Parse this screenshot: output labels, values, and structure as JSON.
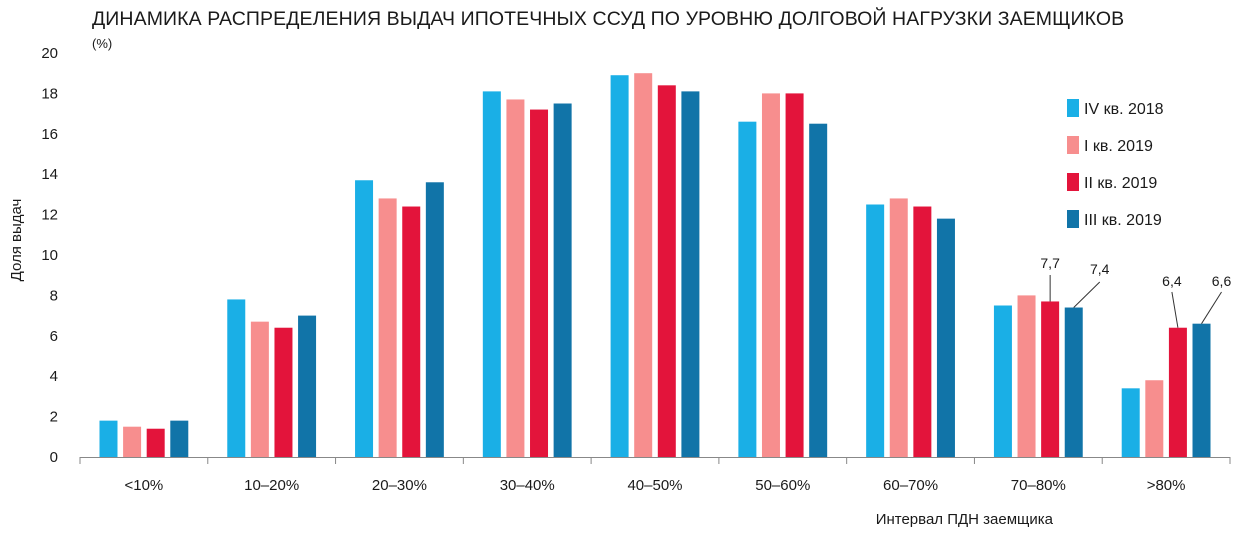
{
  "chart_data": {
    "type": "bar",
    "title": "ДИНАМИКА РАСПРЕДЕЛЕНИЯ ВЫДАЧ ИПОТЕЧНЫХ ССУД ПО УРОВНЮ ДОЛГОВОЙ НАГРУЗКИ ЗАЕМЩИКОВ",
    "subtitle": "(%)",
    "xlabel": "Интервал ПДН заемщика",
    "ylabel": "Доля выдач",
    "ylim": [
      0,
      20
    ],
    "yticks": [
      "0",
      "2",
      "4",
      "6",
      "8",
      "10",
      "12",
      "14",
      "16",
      "18",
      "20"
    ],
    "grid": false,
    "legend_position": "right",
    "categories": [
      "<10%",
      "10–20%",
      "20–30%",
      "30–40%",
      "40–50%",
      "50–60%",
      "60–70%",
      "70–80%",
      ">80%"
    ],
    "series": [
      {
        "name": "IV кв. 2018",
        "color": "#1aafe6",
        "values": [
          1.8,
          7.8,
          13.7,
          18.1,
          18.9,
          16.6,
          12.5,
          7.5,
          3.4
        ]
      },
      {
        "name": "I кв. 2019",
        "color": "#f78e8e",
        "values": [
          1.5,
          6.7,
          12.8,
          17.7,
          19.0,
          18.0,
          12.8,
          8.0,
          3.8
        ]
      },
      {
        "name": "II кв. 2019",
        "color": "#e3143b",
        "values": [
          1.4,
          6.4,
          12.4,
          17.2,
          18.4,
          18.0,
          12.4,
          7.7,
          6.4
        ]
      },
      {
        "name": "III кв. 2019",
        "color": "#1174a8",
        "values": [
          1.8,
          7.0,
          13.6,
          17.5,
          18.1,
          16.5,
          11.8,
          7.4,
          6.6
        ]
      }
    ],
    "data_labels": [
      {
        "category": "70–80%",
        "series": "II кв. 2019",
        "text": "7,7"
      },
      {
        "category": "70–80%",
        "series": "III кв. 2019",
        "text": "7,4"
      },
      {
        "category": ">80%",
        "series": "II кв. 2019",
        "text": "6,4"
      },
      {
        "category": ">80%",
        "series": "III кв. 2019",
        "text": "6,6"
      }
    ]
  }
}
